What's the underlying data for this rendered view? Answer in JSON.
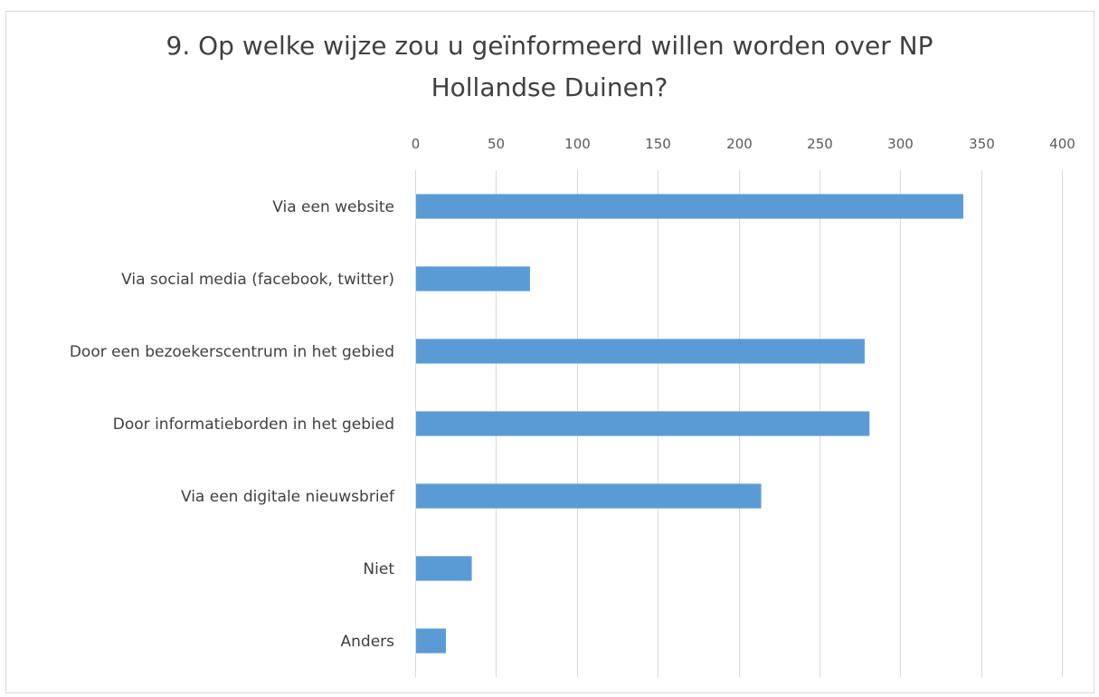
{
  "chart_data": {
    "type": "bar",
    "orientation": "horizontal",
    "title_lines": [
      "9. Op welke wijze zou u geïnformeerd  willen worden over NP",
      "Hollandse Duinen?"
    ],
    "categories": [
      "Via een website",
      "Via social media (facebook, twitter)",
      "Door een bezoekerscentrum in het gebied",
      "Door informatieborden in het gebied",
      "Via een digitale nieuwsbrief",
      "Niet",
      "Anders"
    ],
    "values": [
      339,
      71,
      278,
      281,
      214,
      35,
      19
    ],
    "xlim": [
      0,
      400
    ],
    "x_ticks": [
      0,
      50,
      100,
      150,
      200,
      250,
      300,
      350,
      400
    ],
    "x_axis_position": "top",
    "grid": true,
    "legend": "none",
    "bar_color": "#5b9bd5"
  }
}
